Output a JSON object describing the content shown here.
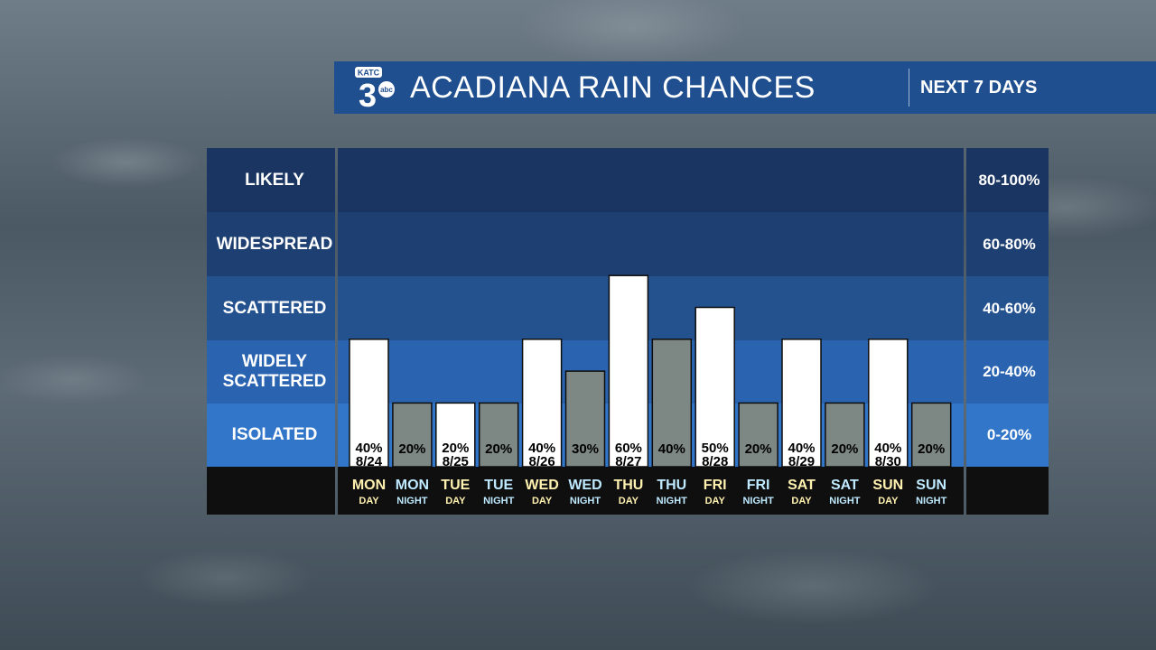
{
  "header": {
    "logo_text": "KATC 3 abc",
    "title": "ACADIANA RAIN CHANCES",
    "subtitle": "NEXT 7 DAYS"
  },
  "colors": {
    "header_bg": "#1f4f8f",
    "day_bar": "#ffffff",
    "night_bar": "#7d8784",
    "day_label": "#fff2b0",
    "night_label": "#bfeaff",
    "footer": "#0f0f0f",
    "bands": [
      "#1a3561",
      "#1e3f72",
      "#24528f",
      "#2a64b0",
      "#3276c9"
    ]
  },
  "categories_left": [
    "LIKELY",
    "WIDESPREAD",
    "SCATTERED",
    "WIDELY\nSCATTERED",
    "ISOLATED"
  ],
  "categories_right": [
    "80-100%",
    "60-80%",
    "40-60%",
    "20-40%",
    "0-20%"
  ],
  "chart_data": {
    "type": "bar",
    "title": "ACADIANA RAIN CHANCES",
    "ylim": [
      0,
      100
    ],
    "bands": [
      {
        "name": "LIKELY",
        "range": "80-100%"
      },
      {
        "name": "WIDESPREAD",
        "range": "60-80%"
      },
      {
        "name": "SCATTERED",
        "range": "40-60%"
      },
      {
        "name": "WIDELY SCATTERED",
        "range": "20-40%"
      },
      {
        "name": "ISOLATED",
        "range": "0-20%"
      }
    ],
    "bars": [
      {
        "day": "MON",
        "period": "DAY",
        "value": 40,
        "label": "40%",
        "date": "8/24"
      },
      {
        "day": "MON",
        "period": "NIGHT",
        "value": 20,
        "label": "20%",
        "date": ""
      },
      {
        "day": "TUE",
        "period": "DAY",
        "value": 20,
        "label": "20%",
        "date": "8/25"
      },
      {
        "day": "TUE",
        "period": "NIGHT",
        "value": 20,
        "label": "20%",
        "date": ""
      },
      {
        "day": "WED",
        "period": "DAY",
        "value": 40,
        "label": "40%",
        "date": "8/26"
      },
      {
        "day": "WED",
        "period": "NIGHT",
        "value": 30,
        "label": "30%",
        "date": ""
      },
      {
        "day": "THU",
        "period": "DAY",
        "value": 60,
        "label": "60%",
        "date": "8/27"
      },
      {
        "day": "THU",
        "period": "NIGHT",
        "value": 40,
        "label": "40%",
        "date": ""
      },
      {
        "day": "FRI",
        "period": "DAY",
        "value": 50,
        "label": "50%",
        "date": "8/28"
      },
      {
        "day": "FRI",
        "period": "NIGHT",
        "value": 20,
        "label": "20%",
        "date": ""
      },
      {
        "day": "SAT",
        "period": "DAY",
        "value": 40,
        "label": "40%",
        "date": "8/29"
      },
      {
        "day": "SAT",
        "period": "NIGHT",
        "value": 20,
        "label": "20%",
        "date": ""
      },
      {
        "day": "SUN",
        "period": "DAY",
        "value": 40,
        "label": "40%",
        "date": "8/30"
      },
      {
        "day": "SUN",
        "period": "NIGHT",
        "value": 20,
        "label": "20%",
        "date": ""
      }
    ]
  }
}
